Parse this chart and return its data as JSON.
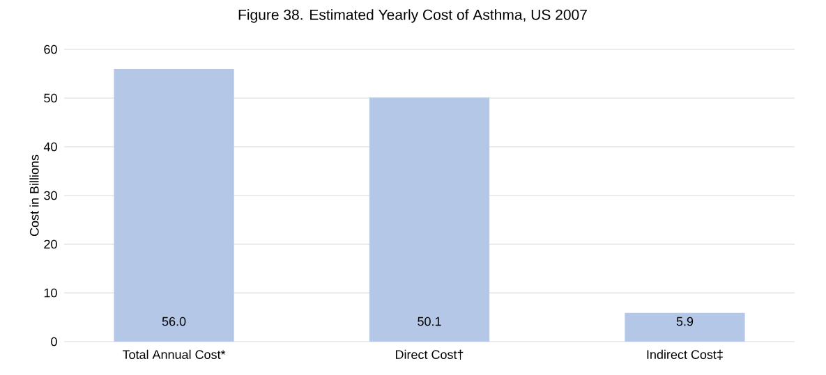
{
  "chart_data": {
    "type": "bar",
    "title": "Figure 38. Estimated Yearly Cost of Asthma, US 2007",
    "ylabel": "Cost in Billions",
    "categories": [
      "Total Annual Cost*",
      "Direct Cost†",
      "Indirect Cost‡"
    ],
    "values": [
      56.0,
      50.1,
      5.9
    ],
    "value_labels": [
      "56.0",
      "50.1",
      "5.9"
    ],
    "color": "#b4c7e7",
    "ylim": [
      0,
      60
    ],
    "yticks": [
      0,
      10,
      20,
      30,
      40,
      50,
      60
    ],
    "grid": "y"
  }
}
